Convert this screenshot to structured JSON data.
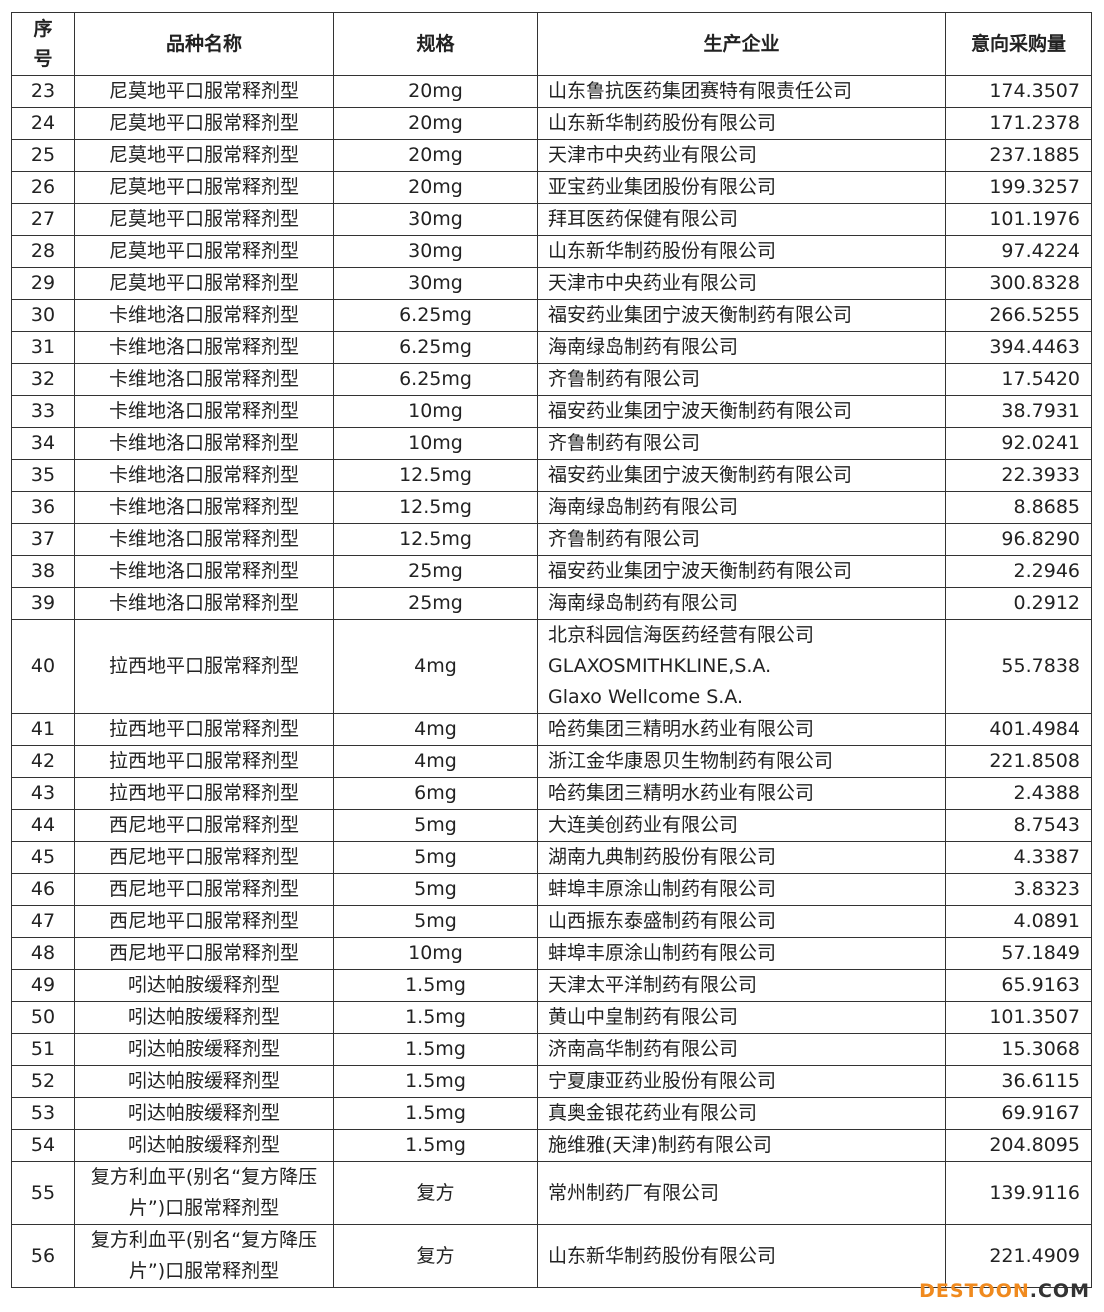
{
  "headers": [
    "序号",
    "品种名称",
    "规格",
    "生产企业",
    "意向采购量"
  ],
  "rows": [
    [
      "23",
      "尼莫地平口服常释剂型",
      "20mg",
      "山东鲁抗医药集团赛特有限责任公司",
      "174.3507"
    ],
    [
      "24",
      "尼莫地平口服常释剂型",
      "20mg",
      "山东新华制药股份有限公司",
      "171.2378"
    ],
    [
      "25",
      "尼莫地平口服常释剂型",
      "20mg",
      "天津市中央药业有限公司",
      "237.1885"
    ],
    [
      "26",
      "尼莫地平口服常释剂型",
      "20mg",
      "亚宝药业集团股份有限公司",
      "199.3257"
    ],
    [
      "27",
      "尼莫地平口服常释剂型",
      "30mg",
      "拜耳医药保健有限公司",
      "101.1976"
    ],
    [
      "28",
      "尼莫地平口服常释剂型",
      "30mg",
      "山东新华制药股份有限公司",
      "97.4224"
    ],
    [
      "29",
      "尼莫地平口服常释剂型",
      "30mg",
      "天津市中央药业有限公司",
      "300.8328"
    ],
    [
      "30",
      "卡维地洛口服常释剂型",
      "6.25mg",
      "福安药业集团宁波天衡制药有限公司",
      "266.5255"
    ],
    [
      "31",
      "卡维地洛口服常释剂型",
      "6.25mg",
      "海南绿岛制药有限公司",
      "394.4463"
    ],
    [
      "32",
      "卡维地洛口服常释剂型",
      "6.25mg",
      "齐鲁制药有限公司",
      "17.5420"
    ],
    [
      "33",
      "卡维地洛口服常释剂型",
      "10mg",
      "福安药业集团宁波天衡制药有限公司",
      "38.7931"
    ],
    [
      "34",
      "卡维地洛口服常释剂型",
      "10mg",
      "齐鲁制药有限公司",
      "92.0241"
    ],
    [
      "35",
      "卡维地洛口服常释剂型",
      "12.5mg",
      "福安药业集团宁波天衡制药有限公司",
      "22.3933"
    ],
    [
      "36",
      "卡维地洛口服常释剂型",
      "12.5mg",
      "海南绿岛制药有限公司",
      "8.8685"
    ],
    [
      "37",
      "卡维地洛口服常释剂型",
      "12.5mg",
      "齐鲁制药有限公司",
      "96.8290"
    ],
    [
      "38",
      "卡维地洛口服常释剂型",
      "25mg",
      "福安药业集团宁波天衡制药有限公司",
      "2.2946"
    ],
    [
      "39",
      "卡维地洛口服常释剂型",
      "25mg",
      "海南绿岛制药有限公司",
      "0.2912"
    ],
    [
      "40",
      "拉西地平口服常释剂型",
      "4mg",
      "北京科园信海医药经营有限公司\nGLAXOSMITHKLINE,S.A.\nGlaxo Wellcome S.A.",
      "55.7838"
    ],
    [
      "41",
      "拉西地平口服常释剂型",
      "4mg",
      "哈药集团三精明水药业有限公司",
      "401.4984"
    ],
    [
      "42",
      "拉西地平口服常释剂型",
      "4mg",
      "浙江金华康恩贝生物制药有限公司",
      "221.8508"
    ],
    [
      "43",
      "拉西地平口服常释剂型",
      "6mg",
      "哈药集团三精明水药业有限公司",
      "2.4388"
    ],
    [
      "44",
      "西尼地平口服常释剂型",
      "5mg",
      "大连美创药业有限公司",
      "8.7543"
    ],
    [
      "45",
      "西尼地平口服常释剂型",
      "5mg",
      "湖南九典制药股份有限公司",
      "4.3387"
    ],
    [
      "46",
      "西尼地平口服常释剂型",
      "5mg",
      "蚌埠丰原涂山制药有限公司",
      "3.8323"
    ],
    [
      "47",
      "西尼地平口服常释剂型",
      "5mg",
      "山西振东泰盛制药有限公司",
      "4.0891"
    ],
    [
      "48",
      "西尼地平口服常释剂型",
      "10mg",
      "蚌埠丰原涂山制药有限公司",
      "57.1849"
    ],
    [
      "49",
      "吲达帕胺缓释剂型",
      "1.5mg",
      "天津太平洋制药有限公司",
      "65.9163"
    ],
    [
      "50",
      "吲达帕胺缓释剂型",
      "1.5mg",
      "黄山中皇制药有限公司",
      "101.3507"
    ],
    [
      "51",
      "吲达帕胺缓释剂型",
      "1.5mg",
      "济南高华制药有限公司",
      "15.3068"
    ],
    [
      "52",
      "吲达帕胺缓释剂型",
      "1.5mg",
      "宁夏康亚药业股份有限公司",
      "36.6115"
    ],
    [
      "53",
      "吲达帕胺缓释剂型",
      "1.5mg",
      "真奥金银花药业有限公司",
      "69.9167"
    ],
    [
      "54",
      "吲达帕胺缓释剂型",
      "1.5mg",
      "施维雅(天津)制药有限公司",
      "204.8095"
    ],
    [
      "55",
      "复方利血平(别名“复方降压片”)口服常释剂型",
      "复方",
      "常州制药厂有限公司",
      "139.9116"
    ],
    [
      "56",
      "复方利血平(别名“复方降压片”)口服常释剂型",
      "复方",
      "山东新华制药股份有限公司",
      "221.4909"
    ]
  ],
  "watermark": {
    "main": "DESTOON",
    "suffix": ".COM",
    "color": "#f08a1e"
  }
}
